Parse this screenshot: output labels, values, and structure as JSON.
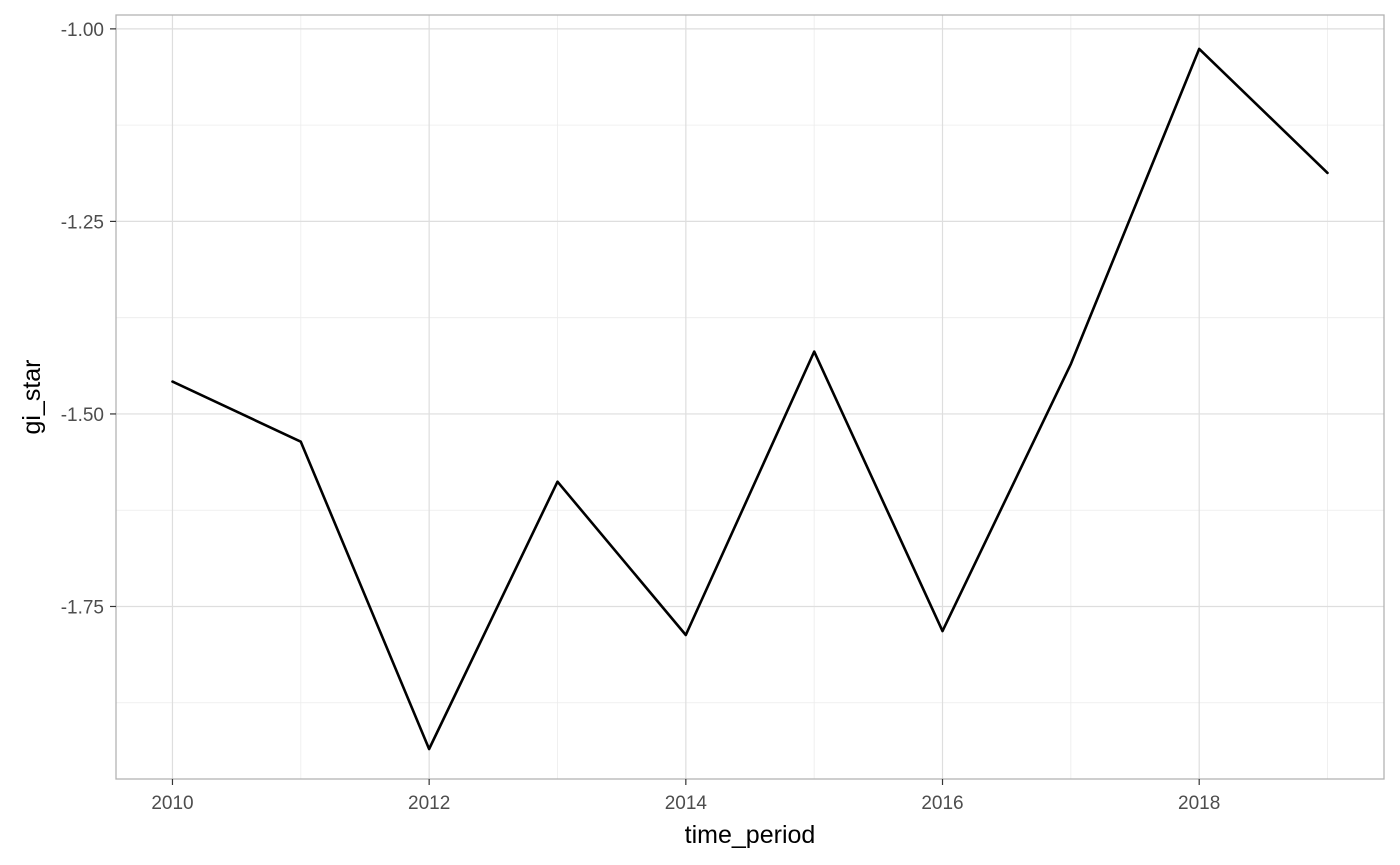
{
  "chart_data": {
    "type": "line",
    "xlabel": "time_period",
    "ylabel": "gi_star",
    "x": [
      2010,
      2011,
      2012,
      2013,
      2014,
      2015,
      2016,
      2017,
      2018,
      2019
    ],
    "series": [
      {
        "values": [
          -1.458,
          -1.536,
          -1.935,
          -1.588,
          -1.787,
          -1.419,
          -1.782,
          -1.435,
          -1.026,
          -1.187
        ],
        "color": "#000000"
      }
    ],
    "xlim": [
      2009.56,
      2019.44
    ],
    "ylim": [
      -1.974,
      -0.982
    ],
    "x_ticks": [
      2010,
      2012,
      2014,
      2016,
      2018
    ],
    "x_tick_labels": [
      "2010",
      "2012",
      "2014",
      "2016",
      "2018"
    ],
    "x_minor_ticks": [
      2011,
      2013,
      2015,
      2017,
      2019
    ],
    "y_ticks": [
      -1.0,
      -1.25,
      -1.5,
      -1.75
    ],
    "y_tick_labels": [
      "-1.00",
      "-1.25",
      "-1.50",
      "-1.75"
    ],
    "y_minor_ticks": [
      -1.125,
      -1.375,
      -1.625,
      -1.875
    ],
    "grid": true,
    "legend": "none",
    "theme": "light"
  }
}
